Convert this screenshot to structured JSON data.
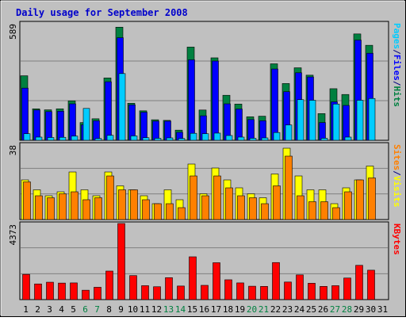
{
  "chart_data": {
    "type": "bar",
    "title": "Daily usage for September 2008",
    "categories": [
      "1",
      "2",
      "3",
      "4",
      "5",
      "6",
      "7",
      "8",
      "9",
      "10",
      "11",
      "12",
      "13",
      "14",
      "15",
      "16",
      "17",
      "18",
      "19",
      "20",
      "21",
      "22",
      "23",
      "24",
      "25",
      "26",
      "27",
      "28",
      "29",
      "30",
      "31"
    ],
    "weekend_days": [
      "6",
      "7",
      "13",
      "14",
      "20",
      "21",
      "27",
      "28"
    ],
    "panels": [
      {
        "id": "top",
        "max_label": "589",
        "ymax": 589,
        "legend": [
          {
            "text": "Pages",
            "color": "#00CCFF"
          },
          {
            "text": "/",
            "color": "#000080"
          },
          {
            "text": "Files",
            "color": "#0000FF"
          },
          {
            "text": "/",
            "color": "#000080"
          },
          {
            "text": "Hits",
            "color": "#008040"
          }
        ],
        "series": [
          {
            "name": "Hits",
            "color": "#008040",
            "values": [
              324,
              158,
              153,
              158,
              198,
              89,
              108,
              313,
              568,
              186,
              148,
              103,
              100,
              51,
              468,
              152,
              414,
              226,
              182,
              118,
              121,
              384,
              285,
              364,
              327,
              134,
              259,
              230,
              534,
              477,
              0
            ]
          },
          {
            "name": "Files",
            "color": "#0000FF",
            "values": [
              262,
              152,
              144,
              146,
              183,
              78,
              98,
              294,
              515,
              178,
              141,
              96,
              96,
              40,
              404,
              123,
              398,
              183,
              157,
              104,
              98,
              358,
              244,
              339,
              318,
              89,
              193,
              175,
              503,
              437,
              0
            ]
          },
          {
            "name": "Pages",
            "color": "#00CCFF",
            "values": [
              33,
              16,
              14,
              15,
              21,
              160,
              9,
              25,
              335,
              22,
              13,
              10,
              12,
              9,
              35,
              33,
              36,
              24,
              16,
              10,
              12,
              39,
              77,
              204,
              201,
              10,
              182,
              16,
              201,
              210,
              0
            ]
          }
        ]
      },
      {
        "id": "mid",
        "max_label": "38",
        "ymax": 38,
        "legend": [
          {
            "text": "Sites",
            "color": "#FF8000"
          },
          {
            "text": "/",
            "color": "#000080"
          },
          {
            "text": "Visits",
            "color": "#FFFF00"
          }
        ],
        "series": [
          {
            "name": "Visits",
            "color": "#FFFF00",
            "values": [
              20,
              15,
              12,
              14,
              24,
              15,
              12,
              24,
              17,
              15,
              12,
              8,
              15,
              10,
              28,
              13,
              26,
              20,
              16,
              13,
              11,
              23,
              36,
              22,
              15,
              15,
              8,
              16,
              20,
              27,
              0
            ]
          },
          {
            "name": "Sites",
            "color": "#FF8000",
            "values": [
              19,
              12,
              11,
              13,
              14,
              10,
              11,
              22,
              15,
              15,
              10,
              8,
              8,
              6,
              22,
              12,
              22,
              16,
              12,
              11,
              8,
              17,
              32,
              12,
              9,
              9,
              6,
              14,
              20,
              21,
              0
            ]
          }
        ]
      },
      {
        "id": "bot",
        "max_label": "4373",
        "ymax": 4373,
        "legend": [
          {
            "text": "KBytes",
            "color": "#FF0000"
          }
        ],
        "series": [
          {
            "name": "KBytes",
            "color": "#FF0000",
            "values": [
              1450,
              900,
              1000,
              950,
              960,
              540,
              710,
              1640,
              4373,
              1380,
              800,
              740,
              1260,
              780,
              2460,
              820,
              2120,
              1140,
              960,
              770,
              760,
              2130,
              1010,
              1420,
              940,
              760,
              800,
              1240,
              1970,
              1690,
              0
            ]
          }
        ]
      }
    ]
  }
}
